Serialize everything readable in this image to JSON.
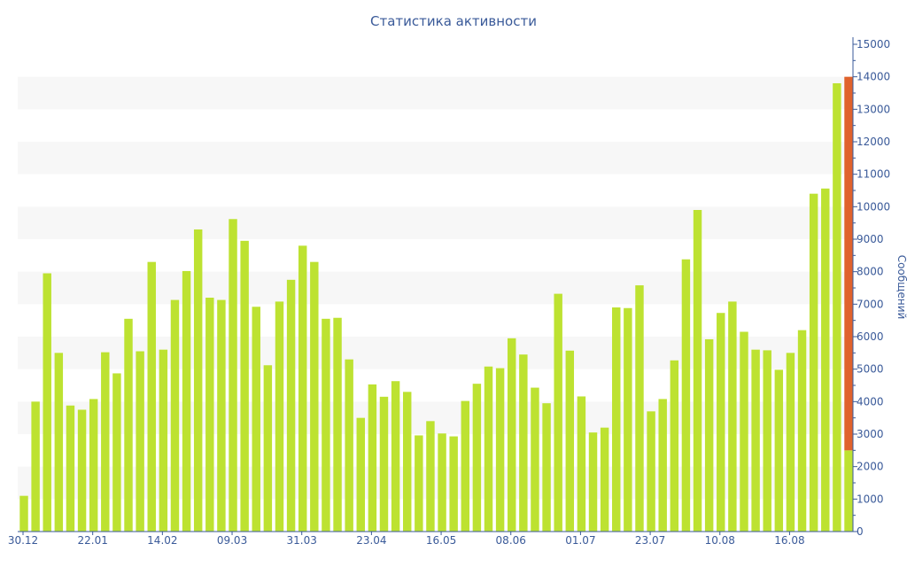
{
  "chart_data": {
    "type": "bar",
    "title": "Статистика активности",
    "ylabel": "Сообщений",
    "xlabel": "",
    "ylim": [
      0,
      15000
    ],
    "y_ticks": [
      0,
      1000,
      2000,
      3000,
      4000,
      5000,
      6000,
      7000,
      8000,
      9000,
      10000,
      11000,
      12000,
      13000,
      14000,
      15000
    ],
    "y_axis_position": "right",
    "x_tick_labels": [
      "30.12",
      "22.01",
      "14.02",
      "09.03",
      "31.03",
      "23.04",
      "16.05",
      "08.06",
      "01.07",
      "23.07",
      "10.08",
      "16.08"
    ],
    "x_tick_bar_index": [
      0,
      6,
      12,
      18,
      24,
      30,
      36,
      42,
      48,
      54,
      60,
      66
    ],
    "grid": "alternating horizontal bands",
    "values": [
      1100,
      4000,
      7950,
      5500,
      3880,
      3750,
      4080,
      5520,
      4870,
      6550,
      5550,
      8300,
      5600,
      7130,
      8020,
      9300,
      7200,
      7130,
      9620,
      8950,
      6920,
      5120,
      7080,
      7750,
      8800,
      8300,
      6550,
      6580,
      5300,
      3500,
      4530,
      4150,
      4630,
      4300,
      2960,
      3400,
      3020,
      2930,
      4020,
      4550,
      5080,
      5030,
      5950,
      5450,
      4430,
      3950,
      7320,
      5570,
      4160,
      3050,
      3200,
      6900,
      6880,
      7580,
      3700,
      4080,
      5270,
      8380,
      9900,
      5920,
      6730,
      7080,
      6150,
      5600,
      5580,
      4980,
      5500,
      6200,
      10400,
      10560,
      13800
    ],
    "highlight_last": {
      "total": 14000,
      "base": 2500
    },
    "colors": {
      "bar": "#bde231",
      "highlight": "#e0622c",
      "text": "#3a5a99",
      "band": "#f7f7f7"
    }
  }
}
